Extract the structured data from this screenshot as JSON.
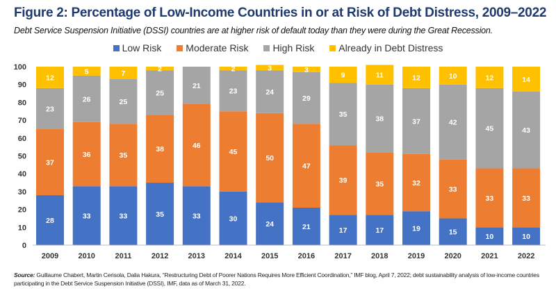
{
  "chart_data": {
    "type": "bar",
    "stacked": true,
    "title": "Figure 2: Percentage of Low-Income Countries in or at Risk of Debt Distress, 2009–2022",
    "subtitle": "Debt Service Suspension Initiative (DSSI) countries are at higher risk of default today than they were during the Great Recession.",
    "categories": [
      "2009",
      "2010",
      "2011",
      "2012",
      "2013",
      "2014",
      "2015",
      "2016",
      "2017",
      "2018",
      "2019",
      "2020",
      "2021",
      "2022"
    ],
    "series": [
      {
        "name": "Low Risk",
        "color": "#4472C4",
        "values": [
          28,
          33,
          33,
          35,
          33,
          30,
          24,
          21,
          17,
          17,
          19,
          15,
          10,
          10
        ]
      },
      {
        "name": "Moderate Risk",
        "color": "#ED7D31",
        "values": [
          37,
          36,
          35,
          38,
          46,
          45,
          50,
          47,
          39,
          35,
          32,
          33,
          33,
          33
        ]
      },
      {
        "name": "High Risk",
        "color": "#A5A5A5",
        "values": [
          23,
          26,
          25,
          25,
          21,
          23,
          24,
          29,
          35,
          38,
          37,
          42,
          45,
          43
        ]
      },
      {
        "name": "Already in Debt Distress",
        "color": "#FFC000",
        "values": [
          12,
          5,
          7,
          2,
          0,
          2,
          3,
          3,
          9,
          11,
          12,
          10,
          12,
          14
        ]
      }
    ],
    "ylim": [
      0,
      100
    ],
    "yticks": [
      0,
      10,
      20,
      30,
      40,
      50,
      60,
      70,
      80,
      90,
      100
    ],
    "legend": "top",
    "grid": false
  },
  "source": {
    "label": "Source:",
    "text": "Guillaume Chabert, Martin Cerisola, Dalia Hakura, “Restructuring Debt of Poorer Nations Requires More Efficient Coordination,” IMF blog, April 7, 2022; debt sustainability analysis of low-income countries participating in the Debt Service Suspension Initiative (DSSI), IMF, data as of March 31, 2022."
  }
}
